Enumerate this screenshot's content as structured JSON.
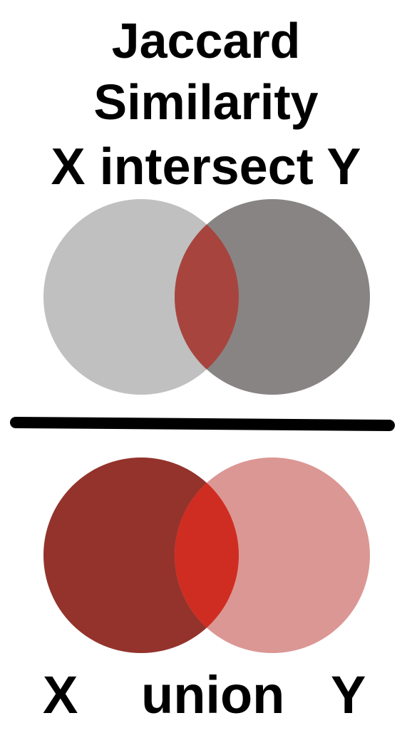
{
  "title": {
    "line1": "Jaccard",
    "line2": "Similarity",
    "line3": "X intersect Y"
  },
  "bottom_label": {
    "x": "X",
    "op": "union",
    "y": "Y"
  },
  "colors": {
    "top_left_circle": "#c0c0c0",
    "top_right_circle": "#888484",
    "top_intersection": "#a8443e",
    "bottom_left_circle": "#93332c",
    "bottom_right_circle": "#db9794",
    "bottom_intersection": "#cf2d21",
    "divider": "#000000"
  }
}
